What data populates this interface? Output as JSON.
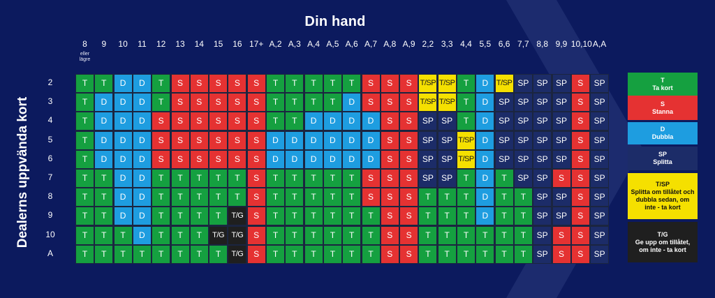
{
  "title": "Din hand",
  "side_title": "Dealerns uppvända kort",
  "column_headers": [
    "8",
    "9",
    "10",
    "11",
    "12",
    "13",
    "14",
    "15",
    "16",
    "17+",
    "A,2",
    "A,3",
    "A,4",
    "A,5",
    "A,6",
    "A,7",
    "A,8",
    "A,9",
    "2,2",
    "3,3",
    "4,4",
    "5,5",
    "6,6",
    "7,7",
    "8,8",
    "9,9",
    "10,10",
    "A,A"
  ],
  "column_subnote": "eller lägre",
  "row_headers": [
    "2",
    "3",
    "4",
    "5",
    "6",
    "7",
    "8",
    "9",
    "10",
    "A"
  ],
  "labels": {
    "T": "T",
    "S": "S",
    "D": "D",
    "SP": "SP",
    "TSP": "T/SP",
    "TG": "T/G"
  },
  "grid": [
    [
      "T",
      "T",
      "D",
      "D",
      "T",
      "S",
      "S",
      "S",
      "S",
      "S",
      "T",
      "T",
      "T",
      "T",
      "T",
      "S",
      "S",
      "S",
      "TSP",
      "TSP",
      "T",
      "D",
      "TSP",
      "SP",
      "SP",
      "SP",
      "S",
      "SP"
    ],
    [
      "T",
      "D",
      "D",
      "D",
      "T",
      "S",
      "S",
      "S",
      "S",
      "S",
      "T",
      "T",
      "T",
      "T",
      "D",
      "S",
      "S",
      "S",
      "TSP",
      "TSP",
      "T",
      "D",
      "SP",
      "SP",
      "SP",
      "SP",
      "S",
      "SP"
    ],
    [
      "T",
      "D",
      "D",
      "D",
      "S",
      "S",
      "S",
      "S",
      "S",
      "S",
      "T",
      "T",
      "D",
      "D",
      "D",
      "D",
      "S",
      "S",
      "SP",
      "SP",
      "T",
      "D",
      "SP",
      "SP",
      "SP",
      "SP",
      "S",
      "SP"
    ],
    [
      "T",
      "D",
      "D",
      "D",
      "S",
      "S",
      "S",
      "S",
      "S",
      "S",
      "D",
      "D",
      "D",
      "D",
      "D",
      "D",
      "S",
      "S",
      "SP",
      "SP",
      "TSP",
      "D",
      "SP",
      "SP",
      "SP",
      "SP",
      "S",
      "SP"
    ],
    [
      "T",
      "D",
      "D",
      "D",
      "S",
      "S",
      "S",
      "S",
      "S",
      "S",
      "D",
      "D",
      "D",
      "D",
      "D",
      "D",
      "S",
      "S",
      "SP",
      "SP",
      "TSP",
      "D",
      "SP",
      "SP",
      "SP",
      "SP",
      "S",
      "SP"
    ],
    [
      "T",
      "T",
      "D",
      "D",
      "T",
      "T",
      "T",
      "T",
      "T",
      "S",
      "T",
      "T",
      "T",
      "T",
      "T",
      "S",
      "S",
      "S",
      "SP",
      "SP",
      "T",
      "D",
      "T",
      "SP",
      "SP",
      "S",
      "S",
      "SP"
    ],
    [
      "T",
      "T",
      "D",
      "D",
      "T",
      "T",
      "T",
      "T",
      "T",
      "S",
      "T",
      "T",
      "T",
      "T",
      "T",
      "S",
      "S",
      "S",
      "T",
      "T",
      "T",
      "D",
      "T",
      "T",
      "SP",
      "SP",
      "S",
      "SP"
    ],
    [
      "T",
      "T",
      "D",
      "D",
      "T",
      "T",
      "T",
      "T",
      "TG",
      "S",
      "T",
      "T",
      "T",
      "T",
      "T",
      "T",
      "S",
      "S",
      "T",
      "T",
      "T",
      "D",
      "T",
      "T",
      "SP",
      "SP",
      "S",
      "SP"
    ],
    [
      "T",
      "T",
      "T",
      "D",
      "T",
      "T",
      "T",
      "TG",
      "TG",
      "S",
      "T",
      "T",
      "T",
      "T",
      "T",
      "T",
      "S",
      "S",
      "T",
      "T",
      "T",
      "T",
      "T",
      "T",
      "SP",
      "S",
      "S",
      "SP"
    ],
    [
      "T",
      "T",
      "T",
      "T",
      "T",
      "T",
      "T",
      "T",
      "TG",
      "S",
      "T",
      "T",
      "T",
      "T",
      "T",
      "T",
      "S",
      "S",
      "T",
      "T",
      "T",
      "T",
      "T",
      "T",
      "SP",
      "S",
      "S",
      "SP"
    ]
  ],
  "legend": [
    {
      "key": "T",
      "abbr": "T",
      "text": "Ta kort"
    },
    {
      "key": "S",
      "abbr": "S",
      "text": "Stanna"
    },
    {
      "key": "D",
      "abbr": "D",
      "text": "Dubbla"
    },
    {
      "key": "SP",
      "abbr": "SP",
      "text": "Splitta"
    },
    {
      "key": "TSP",
      "abbr": "T/SP",
      "text": "Splitta om tillåtet och dubbla sedan, om inte - ta kort"
    },
    {
      "key": "TG",
      "abbr": "T/G",
      "text": "Ge upp om tillåtet, om inte - ta kort"
    }
  ],
  "colors": {
    "background": "#0c1a5e",
    "T": "#15a040",
    "S": "#e53232",
    "D": "#1e9de0",
    "SP": "#1c2c68",
    "TSP": "#f5e000",
    "TG": "#1f1f1f"
  }
}
